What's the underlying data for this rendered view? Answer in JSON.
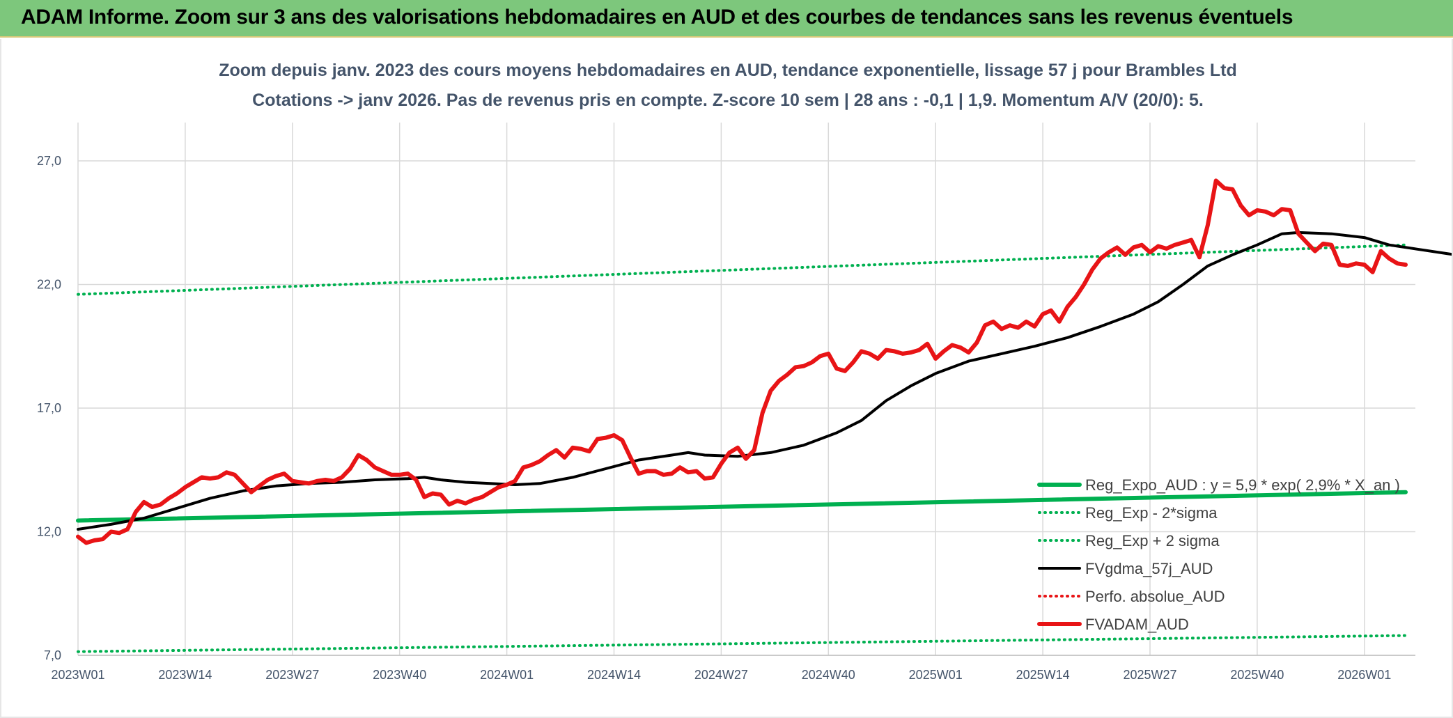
{
  "header": {
    "title": "ADAM Informe. Zoom sur 3 ans des valorisations hebdomadaires en AUD et des courbes de tendances sans les revenus éventuels"
  },
  "colors": {
    "banner_bg": "#7dc77c",
    "regression": "#00b050",
    "moving_average": "#000000",
    "price": "#e81416",
    "grid": "#d9d9d9",
    "text": "#44546a"
  },
  "chart_data": {
    "type": "line",
    "title": "",
    "subtitle_lines": [
      "Zoom depuis janv. 2023 des cours moyens hebdomadaires en AUD, tendance exponentielle, lissage 57 j pour Brambles Ltd",
      "Cotations -> janv 2026. Pas de revenus pris en compte. Z-score 10 sem | 28 ans : -0,1 | 1,9. Momentum A/V (20/0): 5."
    ],
    "xlabel": "",
    "ylabel": "",
    "x_ticks": [
      "2023W01",
      "2023W14",
      "2023W27",
      "2023W40",
      "2024W01",
      "2024W14",
      "2024W27",
      "2024W40",
      "2025W01",
      "2025W14",
      "2025W27",
      "2025W40",
      "2026W01"
    ],
    "x_range_weeks": [
      0,
      161
    ],
    "ylim": [
      7,
      29
    ],
    "y_ticks": [
      7,
      12,
      17,
      22,
      27
    ],
    "y_tick_labels": [
      "7,0",
      "12,0",
      "17,0",
      "22,0",
      "27,0"
    ],
    "grid": true,
    "legend_position": "right",
    "series": [
      {
        "name": "Reg_Expo_AUD : y = 5,9 * exp( 2,9% *  X_an )",
        "style": "solid-thick",
        "color": "#00b050",
        "points": [
          [
            0,
            12.45
          ],
          [
            161,
            13.6
          ]
        ]
      },
      {
        "name": "Reg_Exp - 2*sigma",
        "style": "dotted",
        "color": "#00b050",
        "points": [
          [
            0,
            7.15
          ],
          [
            161,
            7.8
          ]
        ]
      },
      {
        "name": "Reg_Exp + 2 sigma",
        "style": "dotted",
        "color": "#00b050",
        "points": [
          [
            0,
            21.6
          ],
          [
            161,
            23.6
          ]
        ]
      },
      {
        "name": "FVgdma_57j_AUD",
        "style": "solid",
        "color": "#000000",
        "points": [
          [
            0,
            12.1
          ],
          [
            4,
            12.3
          ],
          [
            8,
            12.55
          ],
          [
            12,
            12.95
          ],
          [
            16,
            13.35
          ],
          [
            20,
            13.65
          ],
          [
            24,
            13.85
          ],
          [
            28,
            13.95
          ],
          [
            32,
            14.0
          ],
          [
            36,
            14.1
          ],
          [
            40,
            14.15
          ],
          [
            42,
            14.2
          ],
          [
            44,
            14.1
          ],
          [
            47,
            14.0
          ],
          [
            50,
            13.95
          ],
          [
            53,
            13.9
          ],
          [
            56,
            13.95
          ],
          [
            60,
            14.2
          ],
          [
            64,
            14.55
          ],
          [
            68,
            14.9
          ],
          [
            72,
            15.1
          ],
          [
            74,
            15.2
          ],
          [
            76,
            15.1
          ],
          [
            80,
            15.05
          ],
          [
            84,
            15.2
          ],
          [
            88,
            15.5
          ],
          [
            92,
            16.0
          ],
          [
            95,
            16.5
          ],
          [
            98,
            17.3
          ],
          [
            101,
            17.9
          ],
          [
            104,
            18.4
          ],
          [
            108,
            18.9
          ],
          [
            112,
            19.2
          ],
          [
            116,
            19.5
          ],
          [
            120,
            19.85
          ],
          [
            124,
            20.3
          ],
          [
            128,
            20.8
          ],
          [
            131,
            21.3
          ],
          [
            134,
            22.0
          ],
          [
            137,
            22.75
          ],
          [
            140,
            23.2
          ],
          [
            143,
            23.6
          ],
          [
            146,
            24.05
          ],
          [
            148,
            24.1
          ],
          [
            152,
            24.05
          ],
          [
            156,
            23.9
          ],
          [
            159,
            23.6
          ],
          [
            163,
            23.4
          ],
          [
            166,
            23.25
          ],
          [
            168,
            23.15
          ],
          [
            169,
            23.1
          ]
        ]
      },
      {
        "name": "Perfo. absolue_AUD",
        "style": "dotted",
        "color": "#e81416",
        "points": []
      },
      {
        "name": "FVADAM_AUD",
        "style": "solid-thick",
        "color": "#e81416",
        "points": [
          [
            0,
            11.8
          ],
          [
            1,
            11.55
          ],
          [
            2,
            11.65
          ],
          [
            3,
            11.7
          ],
          [
            4,
            12.0
          ],
          [
            5,
            11.95
          ],
          [
            6,
            12.1
          ],
          [
            7,
            12.8
          ],
          [
            8,
            13.2
          ],
          [
            9,
            13.0
          ],
          [
            10,
            13.1
          ],
          [
            11,
            13.35
          ],
          [
            12,
            13.55
          ],
          [
            13,
            13.8
          ],
          [
            14,
            14.0
          ],
          [
            15,
            14.2
          ],
          [
            16,
            14.15
          ],
          [
            17,
            14.2
          ],
          [
            18,
            14.4
          ],
          [
            19,
            14.3
          ],
          [
            20,
            13.95
          ],
          [
            21,
            13.6
          ],
          [
            22,
            13.85
          ],
          [
            23,
            14.1
          ],
          [
            24,
            14.25
          ],
          [
            25,
            14.35
          ],
          [
            26,
            14.05
          ],
          [
            27,
            14.0
          ],
          [
            28,
            13.95
          ],
          [
            29,
            14.05
          ],
          [
            30,
            14.1
          ],
          [
            31,
            14.05
          ],
          [
            32,
            14.2
          ],
          [
            33,
            14.55
          ],
          [
            34,
            15.1
          ],
          [
            35,
            14.9
          ],
          [
            36,
            14.6
          ],
          [
            37,
            14.45
          ],
          [
            38,
            14.3
          ],
          [
            39,
            14.3
          ],
          [
            40,
            14.35
          ],
          [
            41,
            14.1
          ],
          [
            42,
            13.4
          ],
          [
            43,
            13.55
          ],
          [
            44,
            13.5
          ],
          [
            45,
            13.1
          ],
          [
            46,
            13.25
          ],
          [
            47,
            13.15
          ],
          [
            48,
            13.3
          ],
          [
            49,
            13.4
          ],
          [
            50,
            13.6
          ],
          [
            51,
            13.8
          ],
          [
            52,
            13.9
          ],
          [
            53,
            14.05
          ],
          [
            54,
            14.6
          ],
          [
            55,
            14.7
          ],
          [
            56,
            14.85
          ],
          [
            57,
            15.1
          ],
          [
            58,
            15.3
          ],
          [
            59,
            15.0
          ],
          [
            60,
            15.4
          ],
          [
            61,
            15.35
          ],
          [
            62,
            15.25
          ],
          [
            63,
            15.75
          ],
          [
            64,
            15.8
          ],
          [
            65,
            15.9
          ],
          [
            66,
            15.7
          ],
          [
            67,
            15.0
          ],
          [
            68,
            14.35
          ],
          [
            69,
            14.45
          ],
          [
            70,
            14.45
          ],
          [
            71,
            14.3
          ],
          [
            72,
            14.35
          ],
          [
            73,
            14.6
          ],
          [
            74,
            14.4
          ],
          [
            75,
            14.45
          ],
          [
            76,
            14.15
          ],
          [
            77,
            14.2
          ],
          [
            78,
            14.75
          ],
          [
            79,
            15.2
          ],
          [
            80,
            15.4
          ],
          [
            81,
            14.95
          ],
          [
            82,
            15.3
          ],
          [
            83,
            16.8
          ],
          [
            84,
            17.7
          ],
          [
            85,
            18.1
          ],
          [
            86,
            18.35
          ],
          [
            87,
            18.65
          ],
          [
            88,
            18.7
          ],
          [
            89,
            18.85
          ],
          [
            90,
            19.1
          ],
          [
            91,
            19.2
          ],
          [
            92,
            18.6
          ],
          [
            93,
            18.5
          ],
          [
            94,
            18.85
          ],
          [
            95,
            19.3
          ],
          [
            96,
            19.2
          ],
          [
            97,
            19.0
          ],
          [
            98,
            19.35
          ],
          [
            99,
            19.3
          ],
          [
            100,
            19.2
          ],
          [
            101,
            19.25
          ],
          [
            102,
            19.35
          ],
          [
            103,
            19.6
          ],
          [
            104,
            19.0
          ],
          [
            105,
            19.3
          ],
          [
            106,
            19.55
          ],
          [
            107,
            19.45
          ],
          [
            108,
            19.25
          ],
          [
            109,
            19.65
          ],
          [
            110,
            20.35
          ],
          [
            111,
            20.5
          ],
          [
            112,
            20.2
          ],
          [
            113,
            20.35
          ],
          [
            114,
            20.25
          ],
          [
            115,
            20.5
          ],
          [
            116,
            20.3
          ],
          [
            117,
            20.8
          ],
          [
            118,
            20.95
          ],
          [
            119,
            20.5
          ],
          [
            120,
            21.1
          ],
          [
            121,
            21.5
          ],
          [
            122,
            22.0
          ],
          [
            123,
            22.6
          ],
          [
            124,
            23.05
          ],
          [
            125,
            23.3
          ],
          [
            126,
            23.5
          ],
          [
            127,
            23.2
          ],
          [
            128,
            23.5
          ],
          [
            129,
            23.6
          ],
          [
            130,
            23.3
          ],
          [
            131,
            23.55
          ],
          [
            132,
            23.45
          ],
          [
            133,
            23.6
          ],
          [
            134,
            23.7
          ],
          [
            135,
            23.8
          ],
          [
            136,
            23.1
          ],
          [
            137,
            24.4
          ],
          [
            138,
            26.2
          ],
          [
            139,
            25.9
          ],
          [
            140,
            25.85
          ],
          [
            141,
            25.2
          ],
          [
            142,
            24.8
          ],
          [
            143,
            25.0
          ],
          [
            144,
            24.95
          ],
          [
            145,
            24.8
          ],
          [
            146,
            25.05
          ],
          [
            147,
            25.0
          ],
          [
            148,
            24.05
          ],
          [
            149,
            23.7
          ],
          [
            150,
            23.35
          ],
          [
            151,
            23.65
          ],
          [
            152,
            23.6
          ],
          [
            153,
            22.8
          ],
          [
            154,
            22.75
          ],
          [
            155,
            22.85
          ],
          [
            156,
            22.8
          ],
          [
            157,
            22.5
          ],
          [
            158,
            23.35
          ],
          [
            159,
            23.05
          ],
          [
            160,
            22.85
          ],
          [
            161,
            22.8
          ]
        ]
      }
    ]
  }
}
